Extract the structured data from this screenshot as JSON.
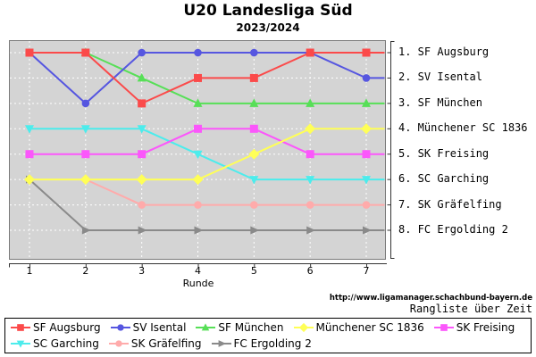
{
  "title": "U20 Landesliga Süd",
  "subtitle": "2023/2024",
  "footer": {
    "url": "http://www.ligamanager.schachbund-bayern.de",
    "caption": "Rangliste über Zeit"
  },
  "chart_data": {
    "type": "line",
    "title": "U20 Landesliga Süd",
    "subtitle": "2023/2024",
    "xlabel": "Runde",
    "x": [
      1,
      2,
      3,
      4,
      5,
      6,
      7
    ],
    "y_axis": {
      "meaning": "rank",
      "min": 1,
      "max": 8,
      "inverted": true
    },
    "grid": true,
    "plot_bg": "#d4d4d4",
    "right_labels": [
      "1. SF Augsburg",
      "2. SV Isental",
      "3. SF München",
      "4. Münchener SC 1836",
      "5. SK Freising",
      "6. SC Garching",
      "7. SK Gräfelfing",
      "8. FC Ergolding 2"
    ],
    "series": [
      {
        "name": "SF Augsburg",
        "color": "#fb4a4a",
        "marker": "square",
        "ranks": [
          1,
          1,
          3,
          2,
          2,
          1,
          1
        ]
      },
      {
        "name": "SV Isental",
        "color": "#5656e0",
        "marker": "circle",
        "ranks": [
          1,
          3,
          1,
          1,
          1,
          1,
          2
        ]
      },
      {
        "name": "SF München",
        "color": "#57df57",
        "marker": "triangle-up",
        "ranks": [
          null,
          1,
          2,
          3,
          3,
          3,
          3
        ]
      },
      {
        "name": "Münchener SC 1836",
        "color": "#ffff57",
        "marker": "diamond",
        "ranks": [
          6,
          6,
          6,
          6,
          5,
          4,
          4
        ]
      },
      {
        "name": "SK Freising",
        "color": "#fb57fb",
        "marker": "square",
        "ranks": [
          5,
          5,
          5,
          4,
          4,
          5,
          5
        ]
      },
      {
        "name": "SC Garching",
        "color": "#4cecec",
        "marker": "triangle-down",
        "ranks": [
          4,
          4,
          4,
          5,
          6,
          6,
          6
        ]
      },
      {
        "name": "SK Gräfelfing",
        "color": "#ffabab",
        "marker": "circle",
        "ranks": [
          null,
          6,
          7,
          7,
          7,
          7,
          7
        ]
      },
      {
        "name": "FC Ergolding 2",
        "color": "#8a8a8a",
        "marker": "arrow-right",
        "ranks": [
          6,
          8,
          8,
          8,
          8,
          8,
          8
        ]
      }
    ],
    "legend_position": "bottom",
    "legend_rows": [
      [
        0,
        1,
        2,
        3,
        4
      ],
      [
        5,
        6,
        7
      ]
    ]
  }
}
